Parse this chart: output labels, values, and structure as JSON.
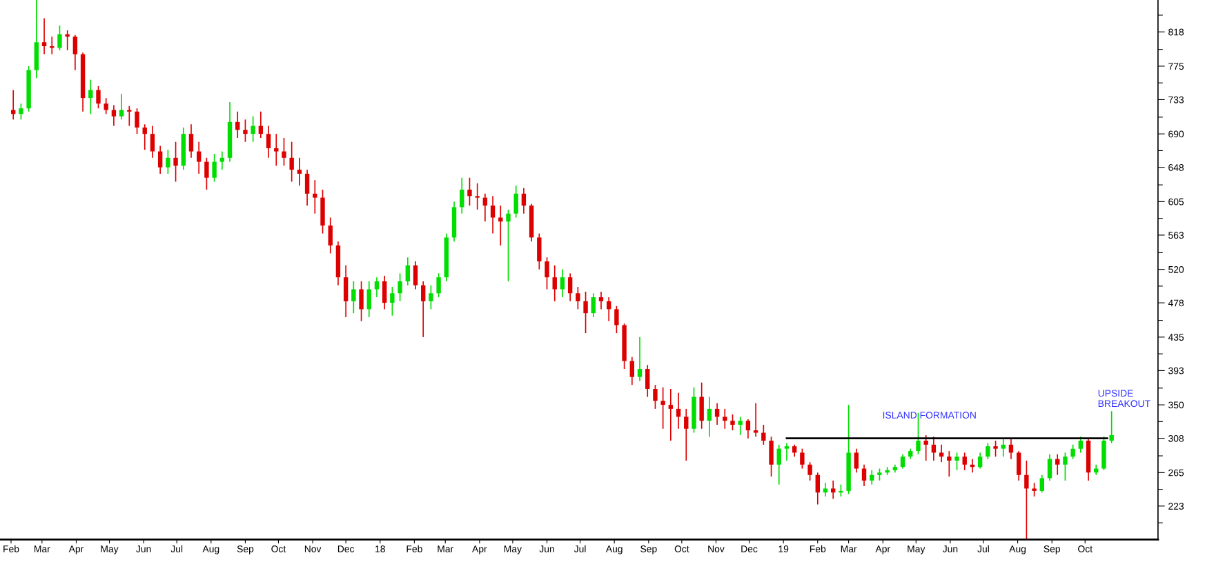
{
  "chart_data": {
    "type": "candlestick",
    "xlim": [
      "2017-01-22",
      "2019-12-06"
    ],
    "xticks": [
      {
        "value": "2017-02-01",
        "label": "Feb"
      },
      {
        "value": "2017-03-01",
        "label": "Mar"
      },
      {
        "value": "2017-04-01",
        "label": "Apr"
      },
      {
        "value": "2017-05-01",
        "label": "May"
      },
      {
        "value": "2017-06-01",
        "label": "Jun"
      },
      {
        "value": "2017-07-01",
        "label": "Jul"
      },
      {
        "value": "2017-08-01",
        "label": "Aug"
      },
      {
        "value": "2017-09-01",
        "label": "Sep"
      },
      {
        "value": "2017-10-01",
        "label": "Oct"
      },
      {
        "value": "2017-11-01",
        "label": "Nov"
      },
      {
        "value": "2017-12-01",
        "label": "Dec"
      },
      {
        "value": "2018-01-01",
        "label": "18"
      },
      {
        "value": "2018-02-01",
        "label": "Feb"
      },
      {
        "value": "2018-03-01",
        "label": "Mar"
      },
      {
        "value": "2018-04-01",
        "label": "Apr"
      },
      {
        "value": "2018-05-01",
        "label": "May"
      },
      {
        "value": "2018-06-01",
        "label": "Jun"
      },
      {
        "value": "2018-07-01",
        "label": "Jul"
      },
      {
        "value": "2018-08-01",
        "label": "Aug"
      },
      {
        "value": "2018-09-01",
        "label": "Sep"
      },
      {
        "value": "2018-10-01",
        "label": "Oct"
      },
      {
        "value": "2018-11-01",
        "label": "Nov"
      },
      {
        "value": "2018-12-01",
        "label": "Dec"
      },
      {
        "value": "2019-01-01",
        "label": "19"
      },
      {
        "value": "2019-02-01",
        "label": "Feb"
      },
      {
        "value": "2019-03-01",
        "label": "Mar"
      },
      {
        "value": "2019-04-01",
        "label": "Apr"
      },
      {
        "value": "2019-05-01",
        "label": "May"
      },
      {
        "value": "2019-06-01",
        "label": "Jun"
      },
      {
        "value": "2019-07-01",
        "label": "Jul"
      },
      {
        "value": "2019-08-01",
        "label": "Aug"
      },
      {
        "value": "2019-09-01",
        "label": "Sep"
      },
      {
        "value": "2019-10-01",
        "label": "Oct"
      }
    ],
    "ylim": [
      181,
      858
    ],
    "yticks": [
      {
        "value": 202,
        "label": null
      },
      223,
      {
        "value": 244,
        "label": null
      },
      265,
      {
        "value": 286,
        "label": null
      },
      308,
      {
        "value": 329,
        "label": null
      },
      350,
      {
        "value": 371,
        "label": null
      },
      393,
      {
        "value": 414,
        "label": null
      },
      435,
      {
        "value": 456,
        "label": null
      },
      478,
      {
        "value": 499,
        "label": null
      },
      520,
      {
        "value": 541,
        "label": null
      },
      563,
      {
        "value": 584,
        "label": null
      },
      605,
      {
        "value": 626,
        "label": null
      },
      648,
      {
        "value": 669,
        "label": null
      },
      690,
      {
        "value": 711,
        "label": null
      },
      733,
      {
        "value": 754,
        "label": null
      },
      775,
      {
        "value": 796,
        "label": null
      },
      818,
      {
        "value": 839,
        "label": null
      }
    ],
    "grid": false,
    "series": [
      {
        "color": "#00dd00",
        "x": [
          "2017-02-10",
          "2017-02-17",
          "2017-02-24",
          "2017-03-17",
          "2017-04-14",
          "2017-05-12",
          "2017-06-23",
          "2017-07-07",
          "2017-08-04",
          "2017-08-11",
          "2017-08-18",
          "2017-09-08",
          "2017-12-08",
          "2017-12-22",
          "2017-12-29",
          "2018-01-12",
          "2018-01-19",
          "2018-01-26",
          "2018-02-16",
          "2018-02-23",
          "2018-03-02",
          "2018-03-09",
          "2018-03-16",
          "2018-04-27",
          "2018-05-04",
          "2018-06-15",
          "2018-07-13",
          "2018-08-24",
          "2018-10-12",
          "2018-10-26",
          "2018-11-23",
          "2018-12-28",
          "2019-01-04",
          "2019-02-08",
          "2019-02-22",
          "2019-03-01",
          "2019-03-22",
          "2019-03-29",
          "2019-04-05",
          "2019-04-12",
          "2019-04-19",
          "2019-04-26",
          "2019-05-03",
          "2019-06-07",
          "2019-06-28",
          "2019-07-05",
          "2019-07-19",
          "2019-08-23",
          "2019-08-30",
          "2019-09-13",
          "2019-09-20",
          "2019-09-27",
          "2019-10-11",
          "2019-10-18",
          "2019-10-25"
        ],
        "ohlc": [
          [
            715,
            728,
            708,
            722
          ],
          [
            722,
            775,
            718,
            770
          ],
          [
            770,
            858,
            760,
            805
          ],
          [
            798,
            826,
            795,
            815
          ],
          [
            735,
            758,
            715,
            745
          ],
          [
            712,
            740,
            708,
            720
          ],
          [
            648,
            670,
            640,
            660
          ],
          [
            650,
            698,
            645,
            690
          ],
          [
            635,
            665,
            630,
            655
          ],
          [
            655,
            668,
            645,
            660
          ],
          [
            660,
            730,
            655,
            705
          ],
          [
            690,
            712,
            680,
            700
          ],
          [
            480,
            505,
            465,
            495
          ],
          [
            470,
            505,
            460,
            495
          ],
          [
            495,
            510,
            485,
            505
          ],
          [
            478,
            498,
            462,
            490
          ],
          [
            490,
            515,
            480,
            505
          ],
          [
            505,
            535,
            500,
            525
          ],
          [
            480,
            500,
            470,
            490
          ],
          [
            490,
            515,
            485,
            510
          ],
          [
            510,
            565,
            505,
            560
          ],
          [
            560,
            605,
            555,
            598
          ],
          [
            598,
            635,
            590,
            620
          ],
          [
            580,
            595,
            505,
            590
          ],
          [
            590,
            625,
            585,
            615
          ],
          [
            495,
            520,
            485,
            510
          ],
          [
            465,
            490,
            460,
            485
          ],
          [
            385,
            435,
            380,
            395
          ],
          [
            320,
            372,
            315,
            360
          ],
          [
            330,
            360,
            310,
            345
          ],
          [
            325,
            335,
            312,
            330
          ],
          [
            275,
            300,
            250,
            295
          ],
          [
            295,
            302,
            280,
            298
          ],
          [
            240,
            252,
            235,
            245
          ],
          [
            240,
            250,
            235,
            242
          ],
          [
            242,
            350,
            238,
            290
          ],
          [
            255,
            268,
            250,
            262
          ],
          [
            262,
            270,
            255,
            265
          ],
          [
            265,
            272,
            262,
            268
          ],
          [
            268,
            275,
            265,
            272
          ],
          [
            272,
            288,
            270,
            285
          ],
          [
            285,
            295,
            282,
            292
          ],
          [
            292,
            340,
            288,
            305
          ],
          [
            280,
            290,
            268,
            285
          ],
          [
            272,
            290,
            270,
            285
          ],
          [
            285,
            302,
            282,
            298
          ],
          [
            295,
            308,
            285,
            300
          ],
          [
            242,
            262,
            240,
            258
          ],
          [
            258,
            288,
            255,
            282
          ],
          [
            275,
            290,
            255,
            285
          ],
          [
            285,
            300,
            282,
            295
          ],
          [
            295,
            310,
            290,
            305
          ],
          [
            265,
            275,
            262,
            270
          ],
          [
            270,
            310,
            268,
            305
          ],
          [
            305,
            342,
            302,
            312
          ]
        ]
      },
      {
        "color": "#dd0000",
        "x": [
          "2017-02-03",
          "2017-03-03",
          "2017-03-10",
          "2017-03-24",
          "2017-03-31",
          "2017-04-07",
          "2017-04-21",
          "2017-04-28",
          "2017-05-05",
          "2017-05-19",
          "2017-05-26",
          "2017-06-02",
          "2017-06-09",
          "2017-06-16",
          "2017-06-30",
          "2017-07-14",
          "2017-07-21",
          "2017-07-28",
          "2017-08-25",
          "2017-09-01",
          "2017-09-15",
          "2017-09-22",
          "2017-09-29",
          "2017-10-06",
          "2017-10-13",
          "2017-10-20",
          "2017-10-27",
          "2017-11-03",
          "2017-11-10",
          "2017-11-17",
          "2017-11-24",
          "2017-12-01",
          "2017-12-15",
          "2018-01-05",
          "2018-02-02",
          "2018-02-09",
          "2018-03-23",
          "2018-03-30",
          "2018-04-06",
          "2018-04-13",
          "2018-04-20",
          "2018-05-11",
          "2018-05-18",
          "2018-05-25",
          "2018-06-01",
          "2018-06-08",
          "2018-06-22",
          "2018-06-29",
          "2018-07-06",
          "2018-07-20",
          "2018-07-27",
          "2018-08-03",
          "2018-08-10",
          "2018-08-17",
          "2018-08-31",
          "2018-09-07",
          "2018-09-14",
          "2018-09-21",
          "2018-09-28",
          "2018-10-05",
          "2018-10-19",
          "2018-11-02",
          "2018-11-09",
          "2018-11-16",
          "2018-11-30",
          "2018-12-07",
          "2018-12-14",
          "2018-12-21",
          "2019-01-11",
          "2019-01-18",
          "2019-01-25",
          "2019-02-01",
          "2019-02-15",
          "2019-03-08",
          "2019-03-15",
          "2019-05-10",
          "2019-05-17",
          "2019-05-24",
          "2019-05-31",
          "2019-06-14",
          "2019-06-21",
          "2019-07-12",
          "2019-07-26",
          "2019-08-02",
          "2019-08-09",
          "2019-08-16",
          "2019-09-06",
          "2019-10-04"
        ],
        "ohlc": [
          [
            720,
            745,
            708,
            715
          ],
          [
            805,
            835,
            790,
            800
          ],
          [
            800,
            812,
            790,
            798
          ],
          [
            815,
            820,
            795,
            812
          ],
          [
            812,
            814,
            770,
            790
          ],
          [
            790,
            792,
            718,
            735
          ],
          [
            745,
            750,
            722,
            728
          ],
          [
            728,
            735,
            715,
            720
          ],
          [
            720,
            726,
            700,
            712
          ],
          [
            720,
            725,
            700,
            718
          ],
          [
            718,
            722,
            690,
            698
          ],
          [
            698,
            702,
            670,
            690
          ],
          [
            690,
            700,
            660,
            668
          ],
          [
            668,
            675,
            640,
            648
          ],
          [
            660,
            680,
            630,
            650
          ],
          [
            690,
            702,
            660,
            668
          ],
          [
            668,
            680,
            640,
            655
          ],
          [
            655,
            660,
            620,
            635
          ],
          [
            705,
            718,
            685,
            695
          ],
          [
            695,
            708,
            680,
            690
          ],
          [
            700,
            718,
            685,
            690
          ],
          [
            690,
            700,
            660,
            672
          ],
          [
            672,
            690,
            650,
            668
          ],
          [
            668,
            685,
            650,
            660
          ],
          [
            660,
            680,
            630,
            645
          ],
          [
            645,
            660,
            625,
            640
          ],
          [
            640,
            645,
            600,
            615
          ],
          [
            615,
            632,
            590,
            610
          ],
          [
            610,
            620,
            565,
            575
          ],
          [
            575,
            585,
            540,
            550
          ],
          [
            550,
            555,
            500,
            510
          ],
          [
            510,
            525,
            460,
            480
          ],
          [
            495,
            505,
            455,
            470
          ],
          [
            505,
            512,
            470,
            478
          ],
          [
            525,
            530,
            495,
            500
          ],
          [
            500,
            505,
            435,
            480
          ],
          [
            620,
            635,
            600,
            612
          ],
          [
            612,
            628,
            595,
            610
          ],
          [
            610,
            615,
            580,
            600
          ],
          [
            600,
            612,
            565,
            585
          ],
          [
            585,
            600,
            550,
            580
          ],
          [
            615,
            622,
            590,
            600
          ],
          [
            600,
            602,
            555,
            560
          ],
          [
            560,
            565,
            520,
            530
          ],
          [
            530,
            535,
            495,
            510
          ],
          [
            510,
            525,
            480,
            495
          ],
          [
            510,
            515,
            480,
            490
          ],
          [
            490,
            498,
            470,
            480
          ],
          [
            480,
            492,
            440,
            465
          ],
          [
            485,
            492,
            470,
            480
          ],
          [
            480,
            485,
            455,
            470
          ],
          [
            470,
            474,
            440,
            450
          ],
          [
            450,
            452,
            395,
            405
          ],
          [
            405,
            410,
            375,
            385
          ],
          [
            395,
            400,
            360,
            370
          ],
          [
            370,
            375,
            345,
            355
          ],
          [
            355,
            372,
            320,
            350
          ],
          [
            350,
            370,
            305,
            345
          ],
          [
            345,
            365,
            320,
            335
          ],
          [
            335,
            345,
            280,
            320
          ],
          [
            360,
            378,
            320,
            330
          ],
          [
            345,
            352,
            325,
            335
          ],
          [
            335,
            345,
            320,
            330
          ],
          [
            330,
            338,
            318,
            325
          ],
          [
            330,
            332,
            308,
            318
          ],
          [
            318,
            352,
            310,
            315
          ],
          [
            315,
            325,
            300,
            305
          ],
          [
            305,
            310,
            260,
            275
          ],
          [
            298,
            300,
            285,
            290
          ],
          [
            290,
            295,
            270,
            275
          ],
          [
            275,
            278,
            255,
            262
          ],
          [
            262,
            265,
            225,
            240
          ],
          [
            245,
            255,
            232,
            240
          ],
          [
            290,
            295,
            265,
            270
          ],
          [
            270,
            275,
            248,
            255
          ],
          [
            305,
            312,
            280,
            300
          ],
          [
            300,
            310,
            280,
            290
          ],
          [
            290,
            300,
            278,
            285
          ],
          [
            285,
            292,
            260,
            280
          ],
          [
            285,
            290,
            268,
            275
          ],
          [
            275,
            282,
            265,
            272
          ],
          [
            298,
            305,
            285,
            295
          ],
          [
            300,
            308,
            282,
            290
          ],
          [
            290,
            292,
            255,
            262
          ],
          [
            262,
            280,
            182,
            245
          ],
          [
            245,
            252,
            235,
            242
          ],
          [
            282,
            288,
            262,
            275
          ],
          [
            305,
            308,
            255,
            265
          ]
        ]
      },
      {
        "type": "line",
        "color": "#000000",
        "x": [
          "2019-01-04",
          "2019-10-21"
        ],
        "values": [
          308,
          308
        ]
      }
    ],
    "annotations": [
      "ISLAND FORMATION",
      "UPSIDE\nBREAKOUT"
    ]
  }
}
